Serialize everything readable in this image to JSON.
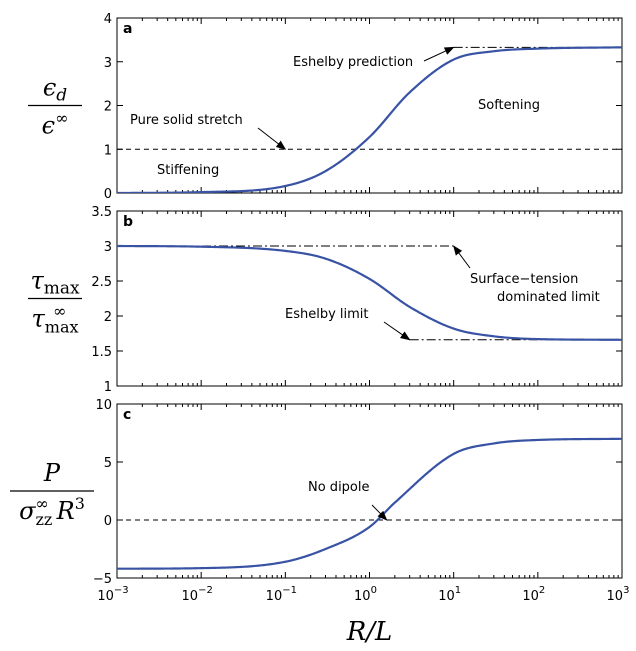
{
  "figure": {
    "xlabel": {
      "var": "R",
      "slash": "/",
      "var2": "L"
    },
    "x_ticks": [
      {
        "base": "10",
        "exp": "−3"
      },
      {
        "base": "10",
        "exp": "−2"
      },
      {
        "base": "10",
        "exp": "−1"
      },
      {
        "base": "10",
        "exp": "0"
      },
      {
        "base": "10",
        "exp": "1"
      },
      {
        "base": "10",
        "exp": "2"
      },
      {
        "base": "10",
        "exp": "3"
      }
    ]
  },
  "chart_data": [
    {
      "type": "line",
      "panel": "a",
      "xscale": "log",
      "xlim": [
        0.001,
        1000
      ],
      "ylim": [
        0,
        4
      ],
      "yticks": [
        "0",
        "1",
        "2",
        "3",
        "4"
      ],
      "ylabel": {
        "num": "ϵ",
        "num_sub": "d",
        "den": "ϵ",
        "den_sup": "∞"
      },
      "series": [
        {
          "x": [
            0.001,
            0.01,
            0.1,
            0.3,
            1,
            3,
            10,
            30,
            100,
            1000
          ],
          "y": [
            0.0,
            0.02,
            0.16,
            0.5,
            1.28,
            2.3,
            3.05,
            3.24,
            3.3,
            3.33
          ]
        }
      ],
      "reference_lines": [
        {
          "style": "dashed",
          "y": 1,
          "x_from": 0.001,
          "x_to": 1000
        },
        {
          "style": "dashdot",
          "y": 3.33,
          "x_from": 10,
          "x_to": 1000
        }
      ],
      "annotations": [
        {
          "text": "Eshelby prediction",
          "arrow_to": [
            10,
            3.33
          ]
        },
        {
          "text": "Softening"
        },
        {
          "text": "Pure solid stretch",
          "arrow_to": [
            0.1,
            1
          ]
        },
        {
          "text": "Stiffening"
        }
      ]
    },
    {
      "type": "line",
      "panel": "b",
      "xscale": "log",
      "xlim": [
        0.001,
        1000
      ],
      "ylim": [
        1,
        3.5
      ],
      "yticks": [
        "1",
        "1.5",
        "2",
        "2.5",
        "3",
        "3.5"
      ],
      "ylabel": {
        "num": "τ",
        "num_sub": "max",
        "den": "τ",
        "den_sub": "max",
        "den_sup": "∞"
      },
      "series": [
        {
          "x": [
            0.001,
            0.01,
            0.1,
            0.3,
            1,
            3,
            10,
            30,
            100,
            1000
          ],
          "y": [
            3.0,
            2.99,
            2.93,
            2.82,
            2.53,
            2.13,
            1.82,
            1.71,
            1.67,
            1.66
          ]
        }
      ],
      "reference_lines": [
        {
          "style": "dashdot",
          "y": 3.0,
          "x_from": 0.001,
          "x_to": 10
        },
        {
          "style": "dashdot",
          "y": 1.66,
          "x_from": 3,
          "x_to": 1000
        }
      ],
      "annotations": [
        {
          "text": "Surface−tension",
          "text2": "dominated limit",
          "arrow_to": [
            10,
            3.0
          ]
        },
        {
          "text": "Eshelby limit",
          "arrow_to": [
            3,
            1.66
          ]
        }
      ]
    },
    {
      "type": "line",
      "panel": "c",
      "xscale": "log",
      "xlim": [
        0.001,
        1000
      ],
      "ylim": [
        -5,
        10
      ],
      "yticks": [
        "−5",
        "0",
        "5",
        "10"
      ],
      "ylabel": {
        "num": "P",
        "den": "σ",
        "den_sub": "zz",
        "den_sup": "∞",
        "den_tail": "R",
        "den_tail_sup": "3"
      },
      "series": [
        {
          "x": [
            0.001,
            0.01,
            0.1,
            0.3,
            1,
            2,
            10,
            30,
            100,
            1000
          ],
          "y": [
            -4.2,
            -4.15,
            -3.6,
            -2.5,
            -0.6,
            1.5,
            5.7,
            6.6,
            6.9,
            7.0
          ]
        }
      ],
      "reference_lines": [
        {
          "style": "dashed",
          "y": 0,
          "x_from": 0.001,
          "x_to": 1000
        }
      ],
      "annotations": [
        {
          "text": "No dipole",
          "arrow_to": [
            1.6,
            0
          ]
        }
      ]
    }
  ]
}
